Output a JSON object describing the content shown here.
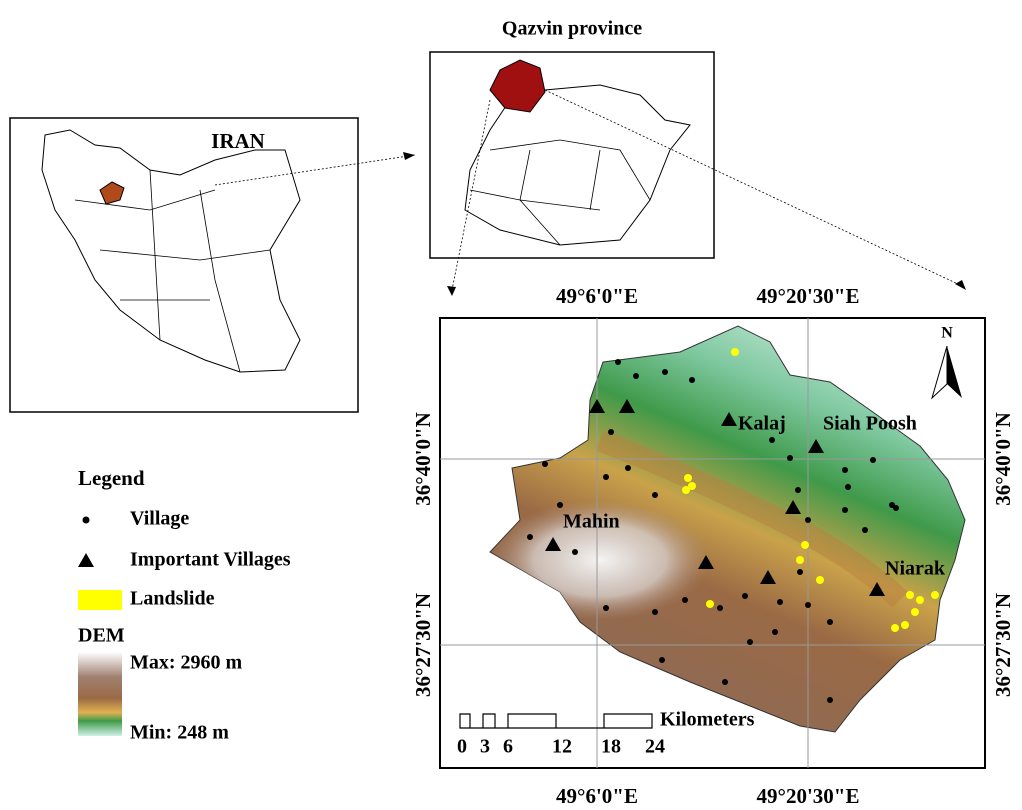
{
  "inset_titles": {
    "province": "Qazvin province",
    "country": "IRAN"
  },
  "legend": {
    "title": "Legend",
    "village": "Village",
    "important_villages": "Important Villages",
    "landslide": "Landslide",
    "dem_title": "DEM",
    "dem_max": "Max: 2960 m",
    "dem_min": "Min: 248 m"
  },
  "map": {
    "top_labels": [
      "49°6'0\"E",
      "49°20'30\"E"
    ],
    "bottom_labels": [
      "49°6'0\"E",
      "49°20'30\"E"
    ],
    "left_labels": [
      "36°40'0\"N",
      "36°27'30\"N"
    ],
    "right_labels": [
      "36°40'0\"N",
      "36°27'30\"N"
    ],
    "north": "N",
    "places": [
      "Kalaj",
      "Siah Poosh",
      "Mahin",
      "Niarak"
    ],
    "scale_unit": "Kilometers",
    "scale_labels": [
      0,
      3,
      6,
      12,
      18,
      24
    ]
  }
}
